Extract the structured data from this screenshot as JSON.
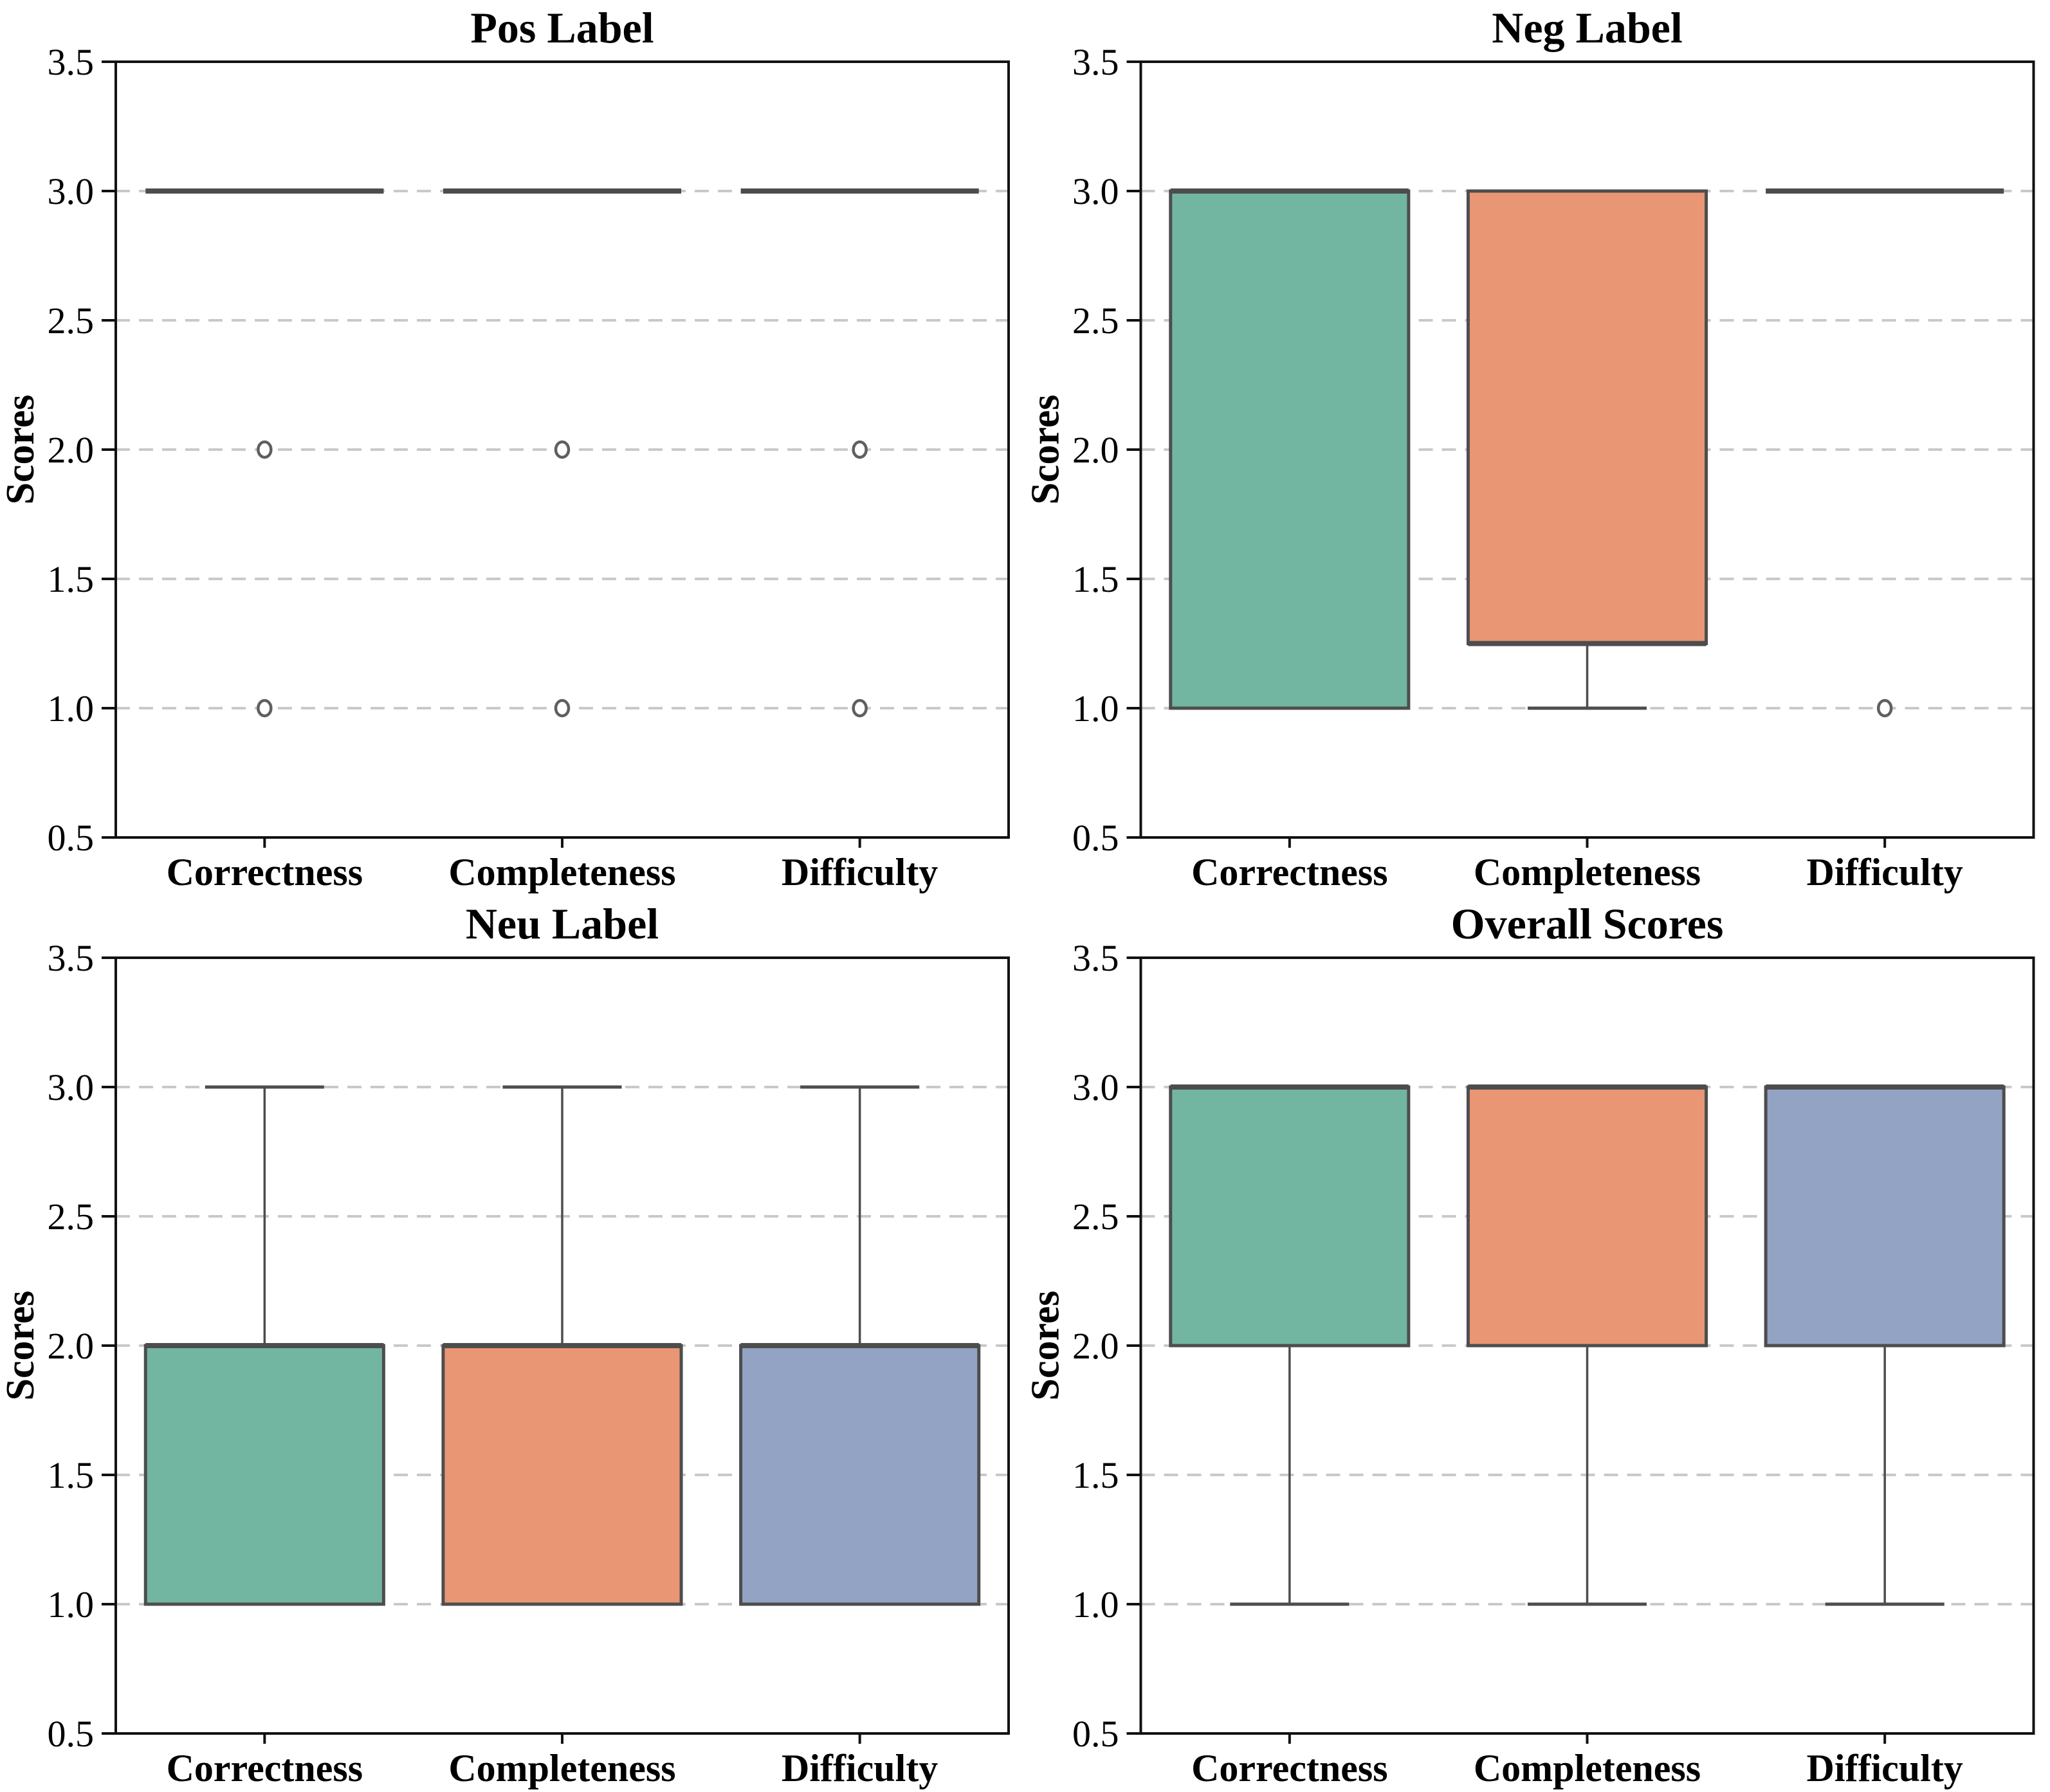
{
  "figure": {
    "background": "#ffffff",
    "layout": "2x2-grid",
    "panel_titles": [
      "Pos Label",
      "Neg Label",
      "Neu Label",
      "Overall Scores"
    ]
  },
  "style": {
    "palette": {
      "green": "#72b5a0",
      "orange": "#e89673",
      "blue": "#93a3c4"
    },
    "box_edge": "#4d4d4d",
    "median": "#4d4d4d",
    "whisker": "#4d4d4d",
    "grid": "#c9c9c9",
    "axis": "#111111",
    "outlier": "#5f5f5f",
    "text": "#000000"
  },
  "chart_data": [
    {
      "type": "boxplot",
      "title": "Pos Label",
      "ylabel": "Scores",
      "xlabel": "",
      "ylim": [
        0.5,
        3.5
      ],
      "yticks": [
        0.5,
        1.0,
        1.5,
        2.0,
        2.5,
        3.0,
        3.5
      ],
      "ytick_labels": [
        "0.5",
        "1.0",
        "1.5",
        "2.0",
        "2.5",
        "3.0",
        "3.5"
      ],
      "gridlines": [
        1.0,
        1.5,
        2.0,
        2.5,
        3.0
      ],
      "grid_style": "dashed-horizontal",
      "legend": "none",
      "categories": [
        "Correctness",
        "Completeness",
        "Difficulty"
      ],
      "boxes": [
        {
          "category": "Correctness",
          "color_key": "green",
          "q1": 3.0,
          "median": 3.0,
          "q3": 3.0,
          "whisker_low": 3.0,
          "whisker_high": 3.0,
          "outliers": [
            2.0,
            1.0
          ]
        },
        {
          "category": "Completeness",
          "color_key": "orange",
          "q1": 3.0,
          "median": 3.0,
          "q3": 3.0,
          "whisker_low": 3.0,
          "whisker_high": 3.0,
          "outliers": [
            2.0,
            1.0
          ]
        },
        {
          "category": "Difficulty",
          "color_key": "blue",
          "q1": 3.0,
          "median": 3.0,
          "q3": 3.0,
          "whisker_low": 3.0,
          "whisker_high": 3.0,
          "outliers": [
            2.0,
            1.0
          ]
        }
      ]
    },
    {
      "type": "boxplot",
      "title": "Neg Label",
      "ylabel": "Scores",
      "xlabel": "",
      "ylim": [
        0.5,
        3.5
      ],
      "yticks": [
        0.5,
        1.0,
        1.5,
        2.0,
        2.5,
        3.0,
        3.5
      ],
      "ytick_labels": [
        "0.5",
        "1.0",
        "1.5",
        "2.0",
        "2.5",
        "3.0",
        "3.5"
      ],
      "gridlines": [
        1.0,
        1.5,
        2.0,
        2.5,
        3.0
      ],
      "grid_style": "dashed-horizontal",
      "legend": "none",
      "categories": [
        "Correctness",
        "Completeness",
        "Difficulty"
      ],
      "boxes": [
        {
          "category": "Correctness",
          "color_key": "green",
          "q1": 1.0,
          "median": 3.0,
          "q3": 3.0,
          "whisker_low": 1.0,
          "whisker_high": 3.0,
          "outliers": []
        },
        {
          "category": "Completeness",
          "color_key": "orange",
          "q1": 1.25,
          "median": 1.25,
          "q3": 3.0,
          "whisker_low": 1.0,
          "whisker_high": 3.0,
          "outliers": []
        },
        {
          "category": "Difficulty",
          "color_key": "blue",
          "q1": 3.0,
          "median": 3.0,
          "q3": 3.0,
          "whisker_low": 3.0,
          "whisker_high": 3.0,
          "outliers": [
            1.0
          ]
        }
      ]
    },
    {
      "type": "boxplot",
      "title": "Neu Label",
      "ylabel": "Scores",
      "xlabel": "",
      "ylim": [
        0.5,
        3.5
      ],
      "yticks": [
        0.5,
        1.0,
        1.5,
        2.0,
        2.5,
        3.0,
        3.5
      ],
      "ytick_labels": [
        "0.5",
        "1.0",
        "1.5",
        "2.0",
        "2.5",
        "3.0",
        "3.5"
      ],
      "gridlines": [
        1.0,
        1.5,
        2.0,
        2.5,
        3.0
      ],
      "grid_style": "dashed-horizontal",
      "legend": "none",
      "categories": [
        "Correctness",
        "Completeness",
        "Difficulty"
      ],
      "boxes": [
        {
          "category": "Correctness",
          "color_key": "green",
          "q1": 1.0,
          "median": 2.0,
          "q3": 2.0,
          "whisker_low": 1.0,
          "whisker_high": 3.0,
          "outliers": []
        },
        {
          "category": "Completeness",
          "color_key": "orange",
          "q1": 1.0,
          "median": 2.0,
          "q3": 2.0,
          "whisker_low": 1.0,
          "whisker_high": 3.0,
          "outliers": []
        },
        {
          "category": "Difficulty",
          "color_key": "blue",
          "q1": 1.0,
          "median": 2.0,
          "q3": 2.0,
          "whisker_low": 1.0,
          "whisker_high": 3.0,
          "outliers": []
        }
      ]
    },
    {
      "type": "boxplot",
      "title": "Overall Scores",
      "ylabel": "Scores",
      "xlabel": "",
      "ylim": [
        0.5,
        3.5
      ],
      "yticks": [
        0.5,
        1.0,
        1.5,
        2.0,
        2.5,
        3.0,
        3.5
      ],
      "ytick_labels": [
        "0.5",
        "1.0",
        "1.5",
        "2.0",
        "2.5",
        "3.0",
        "3.5"
      ],
      "gridlines": [
        1.0,
        1.5,
        2.0,
        2.5,
        3.0
      ],
      "grid_style": "dashed-horizontal",
      "legend": "none",
      "categories": [
        "Correctness",
        "Completeness",
        "Difficulty"
      ],
      "boxes": [
        {
          "category": "Correctness",
          "color_key": "green",
          "q1": 2.0,
          "median": 3.0,
          "q3": 3.0,
          "whisker_low": 1.0,
          "whisker_high": 3.0,
          "outliers": []
        },
        {
          "category": "Completeness",
          "color_key": "orange",
          "q1": 2.0,
          "median": 3.0,
          "q3": 3.0,
          "whisker_low": 1.0,
          "whisker_high": 3.0,
          "outliers": []
        },
        {
          "category": "Difficulty",
          "color_key": "blue",
          "q1": 2.0,
          "median": 3.0,
          "q3": 3.0,
          "whisker_low": 1.0,
          "whisker_high": 3.0,
          "outliers": []
        }
      ]
    }
  ]
}
